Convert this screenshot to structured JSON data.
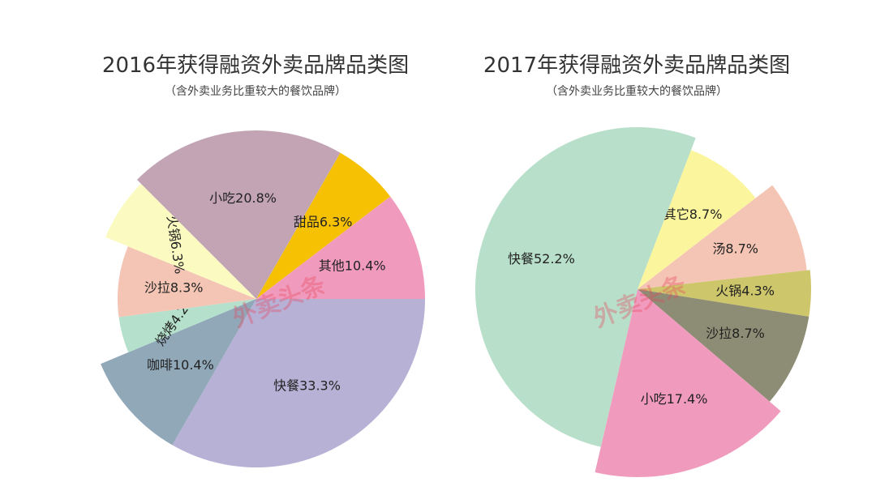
{
  "watermark": "外卖头条",
  "chart_data": [
    {
      "type": "pie",
      "title": "2016年获得融资外卖品牌品类图",
      "subtitle": "（含外卖业务比重较大的餐饮品牌）",
      "slices": [
        {
          "name": "快餐",
          "value": 33.3,
          "label": "快餐33.3%",
          "color": "#b7b1d6"
        },
        {
          "name": "咖啡",
          "value": 10.4,
          "label": "咖啡10.4%",
          "color": "#91a8b9"
        },
        {
          "name": "烧烤",
          "value": 4.2,
          "label": "烧烤4.2%",
          "color": "#b5e1cc"
        },
        {
          "name": "沙拉",
          "value": 8.3,
          "label": "沙拉8.3%",
          "color": "#f4c5b5"
        },
        {
          "name": "火锅",
          "value": 6.3,
          "label": "火锅6.3%",
          "color": "#fbfbc1"
        },
        {
          "name": "小吃",
          "value": 20.8,
          "label": "小吃20.8%",
          "color": "#c2a4b5"
        },
        {
          "name": "甜品",
          "value": 6.3,
          "label": "甜品6.3%",
          "color": "#f6c103"
        },
        {
          "name": "其他",
          "value": 10.4,
          "label": "其他10.4%",
          "color": "#f09bbd"
        }
      ]
    },
    {
      "type": "pie",
      "title": "2017年获得融资外卖品牌品类图",
      "subtitle": "（含外卖业务比重较大的餐饮品牌）",
      "slices": [
        {
          "name": "其它",
          "value": 8.7,
          "label": "其它8.7%",
          "color": "#fbf59d"
        },
        {
          "name": "汤",
          "value": 8.7,
          "label": "汤8.7%",
          "color": "#f4c5b5"
        },
        {
          "name": "火锅",
          "value": 4.3,
          "label": "火锅4.3%",
          "color": "#cec66a"
        },
        {
          "name": "沙拉",
          "value": 8.7,
          "label": "沙拉8.7%",
          "color": "#8d8c74"
        },
        {
          "name": "小吃",
          "value": 17.4,
          "label": "小吃17.4%",
          "color": "#f09bbd"
        },
        {
          "name": "快餐",
          "value": 52.2,
          "label": "快餐52.2%",
          "color": "#b7dfc9"
        }
      ]
    }
  ]
}
